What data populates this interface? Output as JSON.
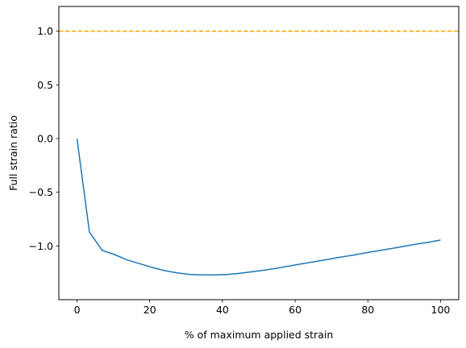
{
  "chart_data": {
    "type": "line",
    "title": "",
    "xlabel": "% of maximum applied strain",
    "ylabel": "Full strain ratio",
    "xlim": [
      -5,
      105
    ],
    "ylim": [
      -1.5,
      1.23
    ],
    "xticks": [
      0,
      20,
      40,
      60,
      80,
      100
    ],
    "yticks": [
      1.0,
      0.5,
      0.0,
      -0.5,
      -1.0
    ],
    "xtick_labels": [
      "0",
      "20",
      "40",
      "60",
      "80",
      "100"
    ],
    "ytick_labels": [
      "1.0",
      "0.5",
      "0.0",
      "−0.5",
      "−1.0"
    ],
    "grid": false,
    "legend": "none",
    "series": [
      {
        "color": "#1f77b4",
        "style": "solid",
        "x": [
          0,
          3.4,
          6.9,
          10.3,
          13.8,
          17.2,
          20.7,
          24.1,
          27.6,
          31.0,
          34.5,
          37.9,
          41.4,
          44.8,
          48.3,
          51.7,
          55.2,
          58.6,
          62.1,
          65.5,
          69.0,
          72.4,
          75.9,
          79.3,
          82.8,
          86.2,
          89.7,
          93.1,
          96.6,
          100
        ],
        "y": [
          0.0,
          -0.87,
          -1.04,
          -1.08,
          -1.13,
          -1.165,
          -1.2,
          -1.23,
          -1.25,
          -1.265,
          -1.27,
          -1.27,
          -1.265,
          -1.255,
          -1.24,
          -1.225,
          -1.205,
          -1.185,
          -1.165,
          -1.145,
          -1.125,
          -1.105,
          -1.085,
          -1.065,
          -1.045,
          -1.025,
          -1.005,
          -0.985,
          -0.965,
          -0.945
        ]
      },
      {
        "color": "#ffa500",
        "style": "dashed",
        "x": [
          -5,
          105
        ],
        "y": [
          1.0,
          1.0
        ]
      }
    ]
  }
}
